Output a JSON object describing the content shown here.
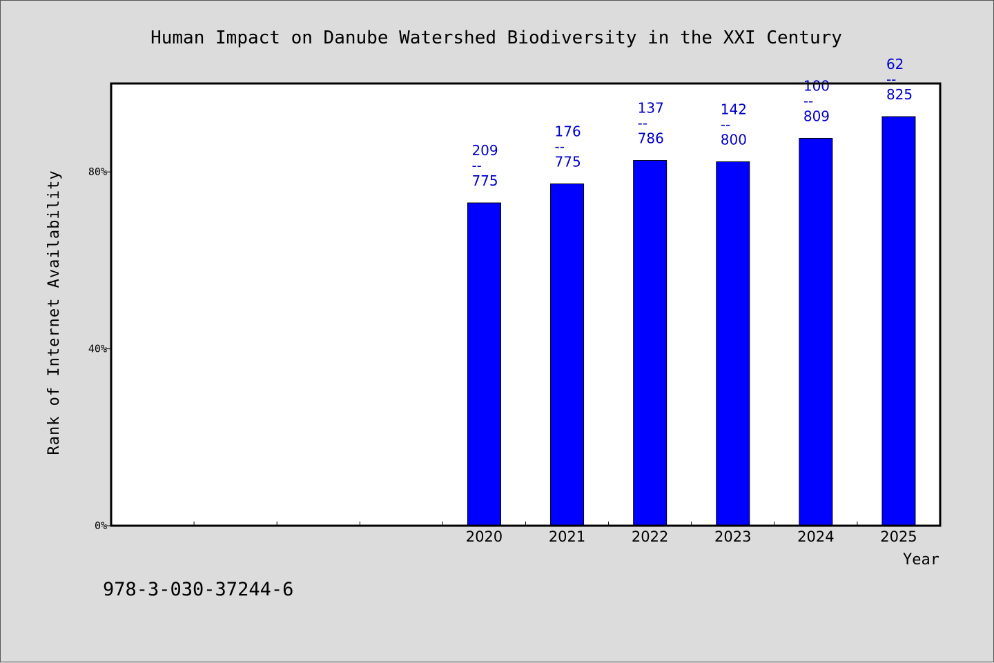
{
  "footnote": "978-3-030-37244-6",
  "colors": {
    "bar": "#0000ff",
    "label": "#0000cc",
    "background": "#dcdcdc",
    "plot": "#ffffff"
  },
  "chart_data": {
    "type": "bar",
    "title": "Human Impact on Danube Watershed Biodiversity in the XXI Century",
    "xlabel": "Year",
    "ylabel": "Rank of Internet Availability",
    "categories": [
      "",
      "",
      "",
      "",
      "2020",
      "2021",
      "2022",
      "2023",
      "2024",
      "2025"
    ],
    "values": [
      null,
      null,
      null,
      null,
      73.0,
      77.3,
      82.6,
      82.3,
      87.6,
      92.5
    ],
    "ylim": [
      0,
      100
    ],
    "yticks": [
      0,
      40,
      80
    ],
    "ytick_labels": [
      "0%",
      "40%",
      "80%"
    ],
    "bar_labels": [
      {
        "category": "2020",
        "top": "209",
        "sep": "--",
        "bottom": "775"
      },
      {
        "category": "2021",
        "top": "176",
        "sep": "--",
        "bottom": "775"
      },
      {
        "category": "2022",
        "top": "137",
        "sep": "--",
        "bottom": "786"
      },
      {
        "category": "2023",
        "top": "142",
        "sep": "--",
        "bottom": "800"
      },
      {
        "category": "2024",
        "top": "100",
        "sep": "--",
        "bottom": "809"
      },
      {
        "category": "2025",
        "top": "62",
        "sep": "--",
        "bottom": "825"
      }
    ],
    "grid": false,
    "legend": "none"
  }
}
